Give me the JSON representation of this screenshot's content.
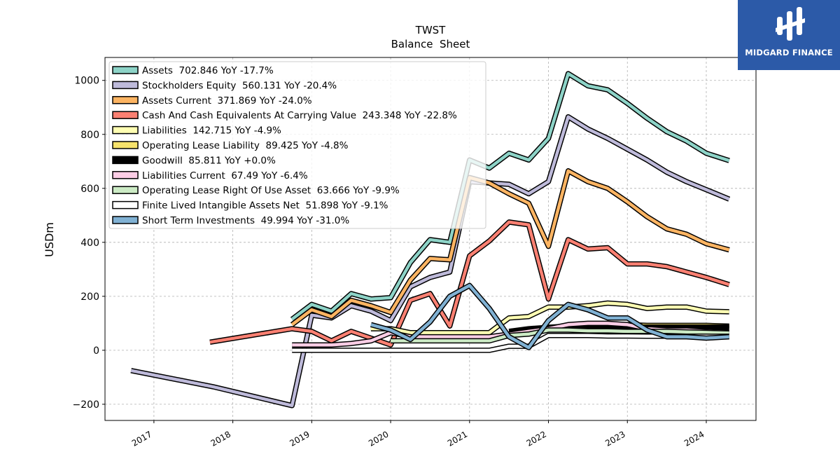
{
  "brand": {
    "name": "MIDGARD FINANCE"
  },
  "chart_data": {
    "type": "line",
    "title": "TWST",
    "subtitle": "Balance  Sheet",
    "xlabel": "",
    "ylabel": "USDm",
    "xlim": [
      2016.38,
      2024.63
    ],
    "ylim": [
      -260,
      1085
    ],
    "x_ticks": [
      "2017",
      "2018",
      "2019",
      "2020",
      "2021",
      "2022",
      "2023",
      "2024"
    ],
    "y_ticks": [
      -200,
      0,
      200,
      400,
      600,
      800,
      1000
    ],
    "y_tick_labels": [
      "−200",
      "0",
      "200",
      "400",
      "600",
      "800",
      "1000"
    ],
    "grid": true,
    "legend_position": "top-left",
    "series": [
      {
        "name": "Assets  702.846 YoY -17.7%",
        "color": "#8dd3c7",
        "x": [
          2018.75,
          2019.0,
          2019.25,
          2019.5,
          2019.75,
          2020.0,
          2020.25,
          2020.5,
          2020.75,
          2021.0,
          2021.25,
          2021.5,
          2021.75,
          2022.0,
          2022.25,
          2022.5,
          2022.75,
          2023.0,
          2023.25,
          2023.5,
          2023.75,
          2024.0,
          2024.29
        ],
        "y": [
          115,
          170,
          145,
          210,
          190,
          195,
          325,
          410,
          400,
          705,
          675,
          730,
          705,
          785,
          1025,
          980,
          965,
          915,
          860,
          810,
          775,
          730,
          702.8
        ]
      },
      {
        "name": "Stockholders Equity  560.131 YoY -20.4%",
        "color": "#bebada",
        "x": [
          2016.71,
          2017.75,
          2018.75,
          2019.0,
          2019.25,
          2019.5,
          2019.75,
          2020.0,
          2020.25,
          2020.5,
          2020.75,
          2021.0,
          2021.25,
          2021.5,
          2021.75,
          2022.0,
          2022.25,
          2022.5,
          2022.75,
          2023.0,
          2023.25,
          2023.5,
          2023.75,
          2024.0,
          2024.29
        ],
        "y": [
          -75,
          -135,
          -205,
          130,
          120,
          165,
          145,
          110,
          235,
          270,
          290,
          625,
          620,
          615,
          580,
          625,
          865,
          820,
          785,
          745,
          705,
          660,
          625,
          595,
          560.1
        ]
      },
      {
        "name": "Assets Current  371.869 YoY -24.0%",
        "color": "#fdb462",
        "x": [
          2018.75,
          2019.0,
          2019.25,
          2019.5,
          2019.75,
          2020.0,
          2020.25,
          2020.5,
          2020.75,
          2021.0,
          2021.25,
          2021.5,
          2021.75,
          2022.0,
          2022.25,
          2022.5,
          2022.75,
          2023.0,
          2023.25,
          2023.5,
          2023.75,
          2024.0,
          2024.29
        ],
        "y": [
          95,
          150,
          125,
          185,
          165,
          140,
          260,
          340,
          335,
          640,
          620,
          580,
          545,
          385,
          665,
          625,
          600,
          550,
          495,
          450,
          430,
          395,
          371.9
        ]
      },
      {
        "name": "Cash And Cash Equivalents At Carrying Value  243.348 YoY -22.8%",
        "color": "#fb8072",
        "x": [
          2017.71,
          2018.75,
          2019.0,
          2019.25,
          2019.5,
          2019.75,
          2020.0,
          2020.25,
          2020.5,
          2020.75,
          2021.0,
          2021.25,
          2021.5,
          2021.75,
          2022.0,
          2022.25,
          2022.5,
          2022.75,
          2023.0,
          2023.25,
          2023.5,
          2023.75,
          2024.0,
          2024.29
        ],
        "y": [
          30,
          80,
          70,
          35,
          70,
          45,
          20,
          185,
          210,
          90,
          350,
          405,
          475,
          465,
          190,
          410,
          375,
          380,
          320,
          320,
          310,
          290,
          270,
          243.3
        ]
      },
      {
        "name": "Liabilities  142.715 YoY -4.9%",
        "color": "#ffffb3",
        "x": [
          2019.75,
          2020.0,
          2020.25,
          2020.5,
          2020.75,
          2021.0,
          2021.25,
          2021.5,
          2021.75,
          2022.0,
          2022.25,
          2022.5,
          2022.75,
          2023.0,
          2023.25,
          2023.5,
          2023.75,
          2024.0,
          2024.29
        ],
        "y": [
          80,
          80,
          65,
          65,
          65,
          65,
          65,
          120,
          125,
          160,
          160,
          165,
          175,
          170,
          155,
          160,
          160,
          145,
          142.7
        ]
      },
      {
        "name": "Operating Lease Liability  89.425 YoY -4.8%",
        "color": "#f6e26b",
        "x": [
          2021.5,
          2021.75,
          2022.0,
          2022.25,
          2022.5,
          2022.75,
          2023.0,
          2023.25,
          2023.5,
          2023.75,
          2024.0,
          2024.29
        ],
        "y": [
          70,
          75,
          85,
          90,
          95,
          95,
          95,
          92,
          92,
          92,
          92,
          89.4
        ]
      },
      {
        "name": "Goodwill  85.811 YoY +0.0%",
        "color": "#000000",
        "x": [
          2021.5,
          2021.75,
          2022.0,
          2022.25,
          2022.5,
          2022.75,
          2023.0,
          2023.25,
          2023.5,
          2023.75,
          2024.0,
          2024.29
        ],
        "y": [
          70,
          80,
          85,
          85,
          86,
          86,
          86,
          86,
          86,
          86,
          86,
          85.8
        ]
      },
      {
        "name": "Liabilities Current  67.49 YoY -6.4%",
        "color": "#fccde5",
        "x": [
          2018.75,
          2019.0,
          2019.25,
          2019.5,
          2019.75,
          2020.0,
          2020.25,
          2020.5,
          2020.75,
          2021.0,
          2021.25,
          2021.5,
          2021.75,
          2022.0,
          2022.25,
          2022.5,
          2022.75,
          2023.0,
          2023.25,
          2023.5,
          2023.75,
          2024.0,
          2024.29
        ],
        "y": [
          20,
          20,
          20,
          25,
          35,
          65,
          50,
          50,
          50,
          50,
          50,
          60,
          70,
          80,
          95,
          100,
          100,
          95,
          80,
          75,
          75,
          70,
          67.5
        ]
      },
      {
        "name": "Operating Lease Right Of Use Asset  63.666 YoY -9.9%",
        "color": "#ccebc5",
        "x": [
          2020.0,
          2020.25,
          2020.5,
          2020.75,
          2021.0,
          2021.25,
          2021.5,
          2021.75,
          2022.0,
          2022.25,
          2022.5,
          2022.75,
          2023.0,
          2023.25,
          2023.5,
          2023.75,
          2024.0,
          2024.29
        ],
        "y": [
          35,
          35,
          35,
          35,
          35,
          35,
          55,
          60,
          75,
          75,
          72,
          72,
          70,
          70,
          70,
          68,
          66,
          63.7
        ]
      },
      {
        "name": "Finite Lived Intangible Assets Net  51.898 YoY -9.1%",
        "color": "#ffffff",
        "x": [
          2018.75,
          2019.0,
          2019.25,
          2019.5,
          2019.75,
          2020.0,
          2020.25,
          2020.5,
          2020.75,
          2021.0,
          2021.25,
          2021.5,
          2021.75,
          2022.0,
          2022.25,
          2022.5,
          2022.75,
          2023.0,
          2023.25,
          2023.5,
          2023.75,
          2024.0,
          2024.29
        ],
        "y": [
          0,
          0,
          0,
          0,
          0,
          0,
          0,
          0,
          0,
          0,
          0,
          15,
          15,
          55,
          55,
          55,
          53,
          53,
          52,
          52,
          52,
          52,
          51.9
        ]
      },
      {
        "name": "Short Term Investments  49.994 YoY -31.0%",
        "color": "#80b1d3",
        "x": [
          2019.75,
          2020.0,
          2020.25,
          2020.5,
          2020.75,
          2021.0,
          2021.25,
          2021.5,
          2021.75,
          2022.0,
          2022.25,
          2022.5,
          2022.75,
          2023.0,
          2023.25,
          2023.5,
          2023.75,
          2024.0,
          2024.29
        ],
        "y": [
          95,
          75,
          40,
          105,
          200,
          240,
          155,
          50,
          10,
          110,
          170,
          150,
          120,
          120,
          75,
          50,
          50,
          45,
          50.0
        ]
      }
    ]
  }
}
